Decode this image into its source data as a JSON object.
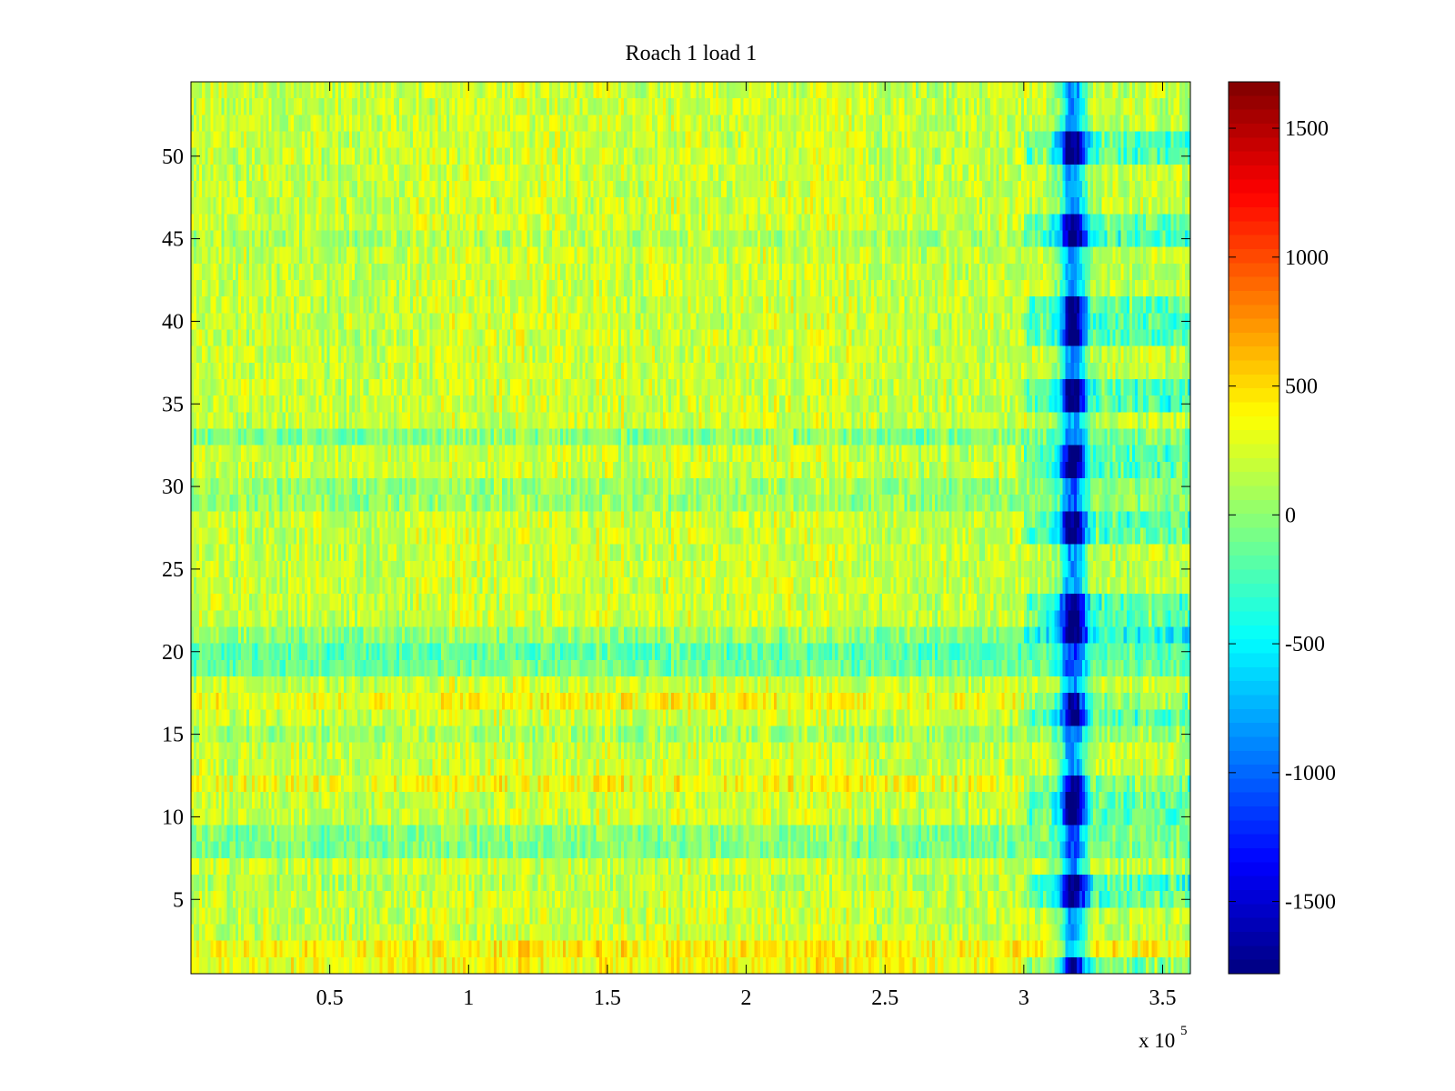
{
  "chart_data": {
    "type": "heatmap",
    "title": "Roach 1 load 1",
    "xlabel": "",
    "ylabel": "",
    "x_multiplier_label": {
      "base": "x 10",
      "exponent": "5"
    },
    "xlim": [
      0,
      3.6
    ],
    "ylim": [
      0.5,
      54.5
    ],
    "x_ticks": [
      0.5,
      1,
      1.5,
      2,
      2.5,
      3,
      3.5
    ],
    "x_tick_labels": [
      "0.5",
      "1",
      "1.5",
      "2",
      "2.5",
      "3",
      "3.5"
    ],
    "y_ticks": [
      5,
      10,
      15,
      20,
      25,
      30,
      35,
      40,
      45,
      50
    ],
    "y_tick_labels": [
      "5",
      "10",
      "15",
      "20",
      "25",
      "30",
      "35",
      "40",
      "45",
      "50"
    ],
    "colormap": "jet",
    "clim": [
      -1780,
      1680
    ],
    "colorbar_ticks": [
      1500,
      1000,
      500,
      0,
      -500,
      -1000,
      -1500
    ],
    "colorbar_tick_labels": [
      "1500",
      "1000",
      "500",
      "0",
      "-500",
      "-1000",
      "-1500"
    ],
    "rows": 54,
    "cols": 360,
    "background_level": 180,
    "noise_amplitude": 420,
    "row_offsets": [
      {
        "row": 1,
        "value": 150
      },
      {
        "row": 2,
        "value": 200
      },
      {
        "row": 6,
        "value": -80
      },
      {
        "row": 8,
        "value": -260
      },
      {
        "row": 9,
        "value": -240
      },
      {
        "row": 12,
        "value": 140
      },
      {
        "row": 15,
        "value": -140
      },
      {
        "row": 17,
        "value": 170
      },
      {
        "row": 19,
        "value": -320
      },
      {
        "row": 20,
        "value": -380
      },
      {
        "row": 21,
        "value": -200
      },
      {
        "row": 29,
        "value": -160
      },
      {
        "row": 30,
        "value": -170
      },
      {
        "row": 33,
        "value": -240
      },
      {
        "row": 45,
        "value": -90
      }
    ],
    "dip_feature": {
      "x_center": 3.18,
      "x_halfwidth": 0.045,
      "depth": -1750,
      "strong_rows": [
        1,
        5,
        6,
        10,
        11,
        12,
        16,
        17,
        21,
        22,
        23,
        27,
        28,
        31,
        32,
        35,
        36,
        39,
        40,
        41,
        45,
        46,
        50,
        51
      ],
      "band_start_x": 3.0,
      "band_depth": -700
    }
  }
}
